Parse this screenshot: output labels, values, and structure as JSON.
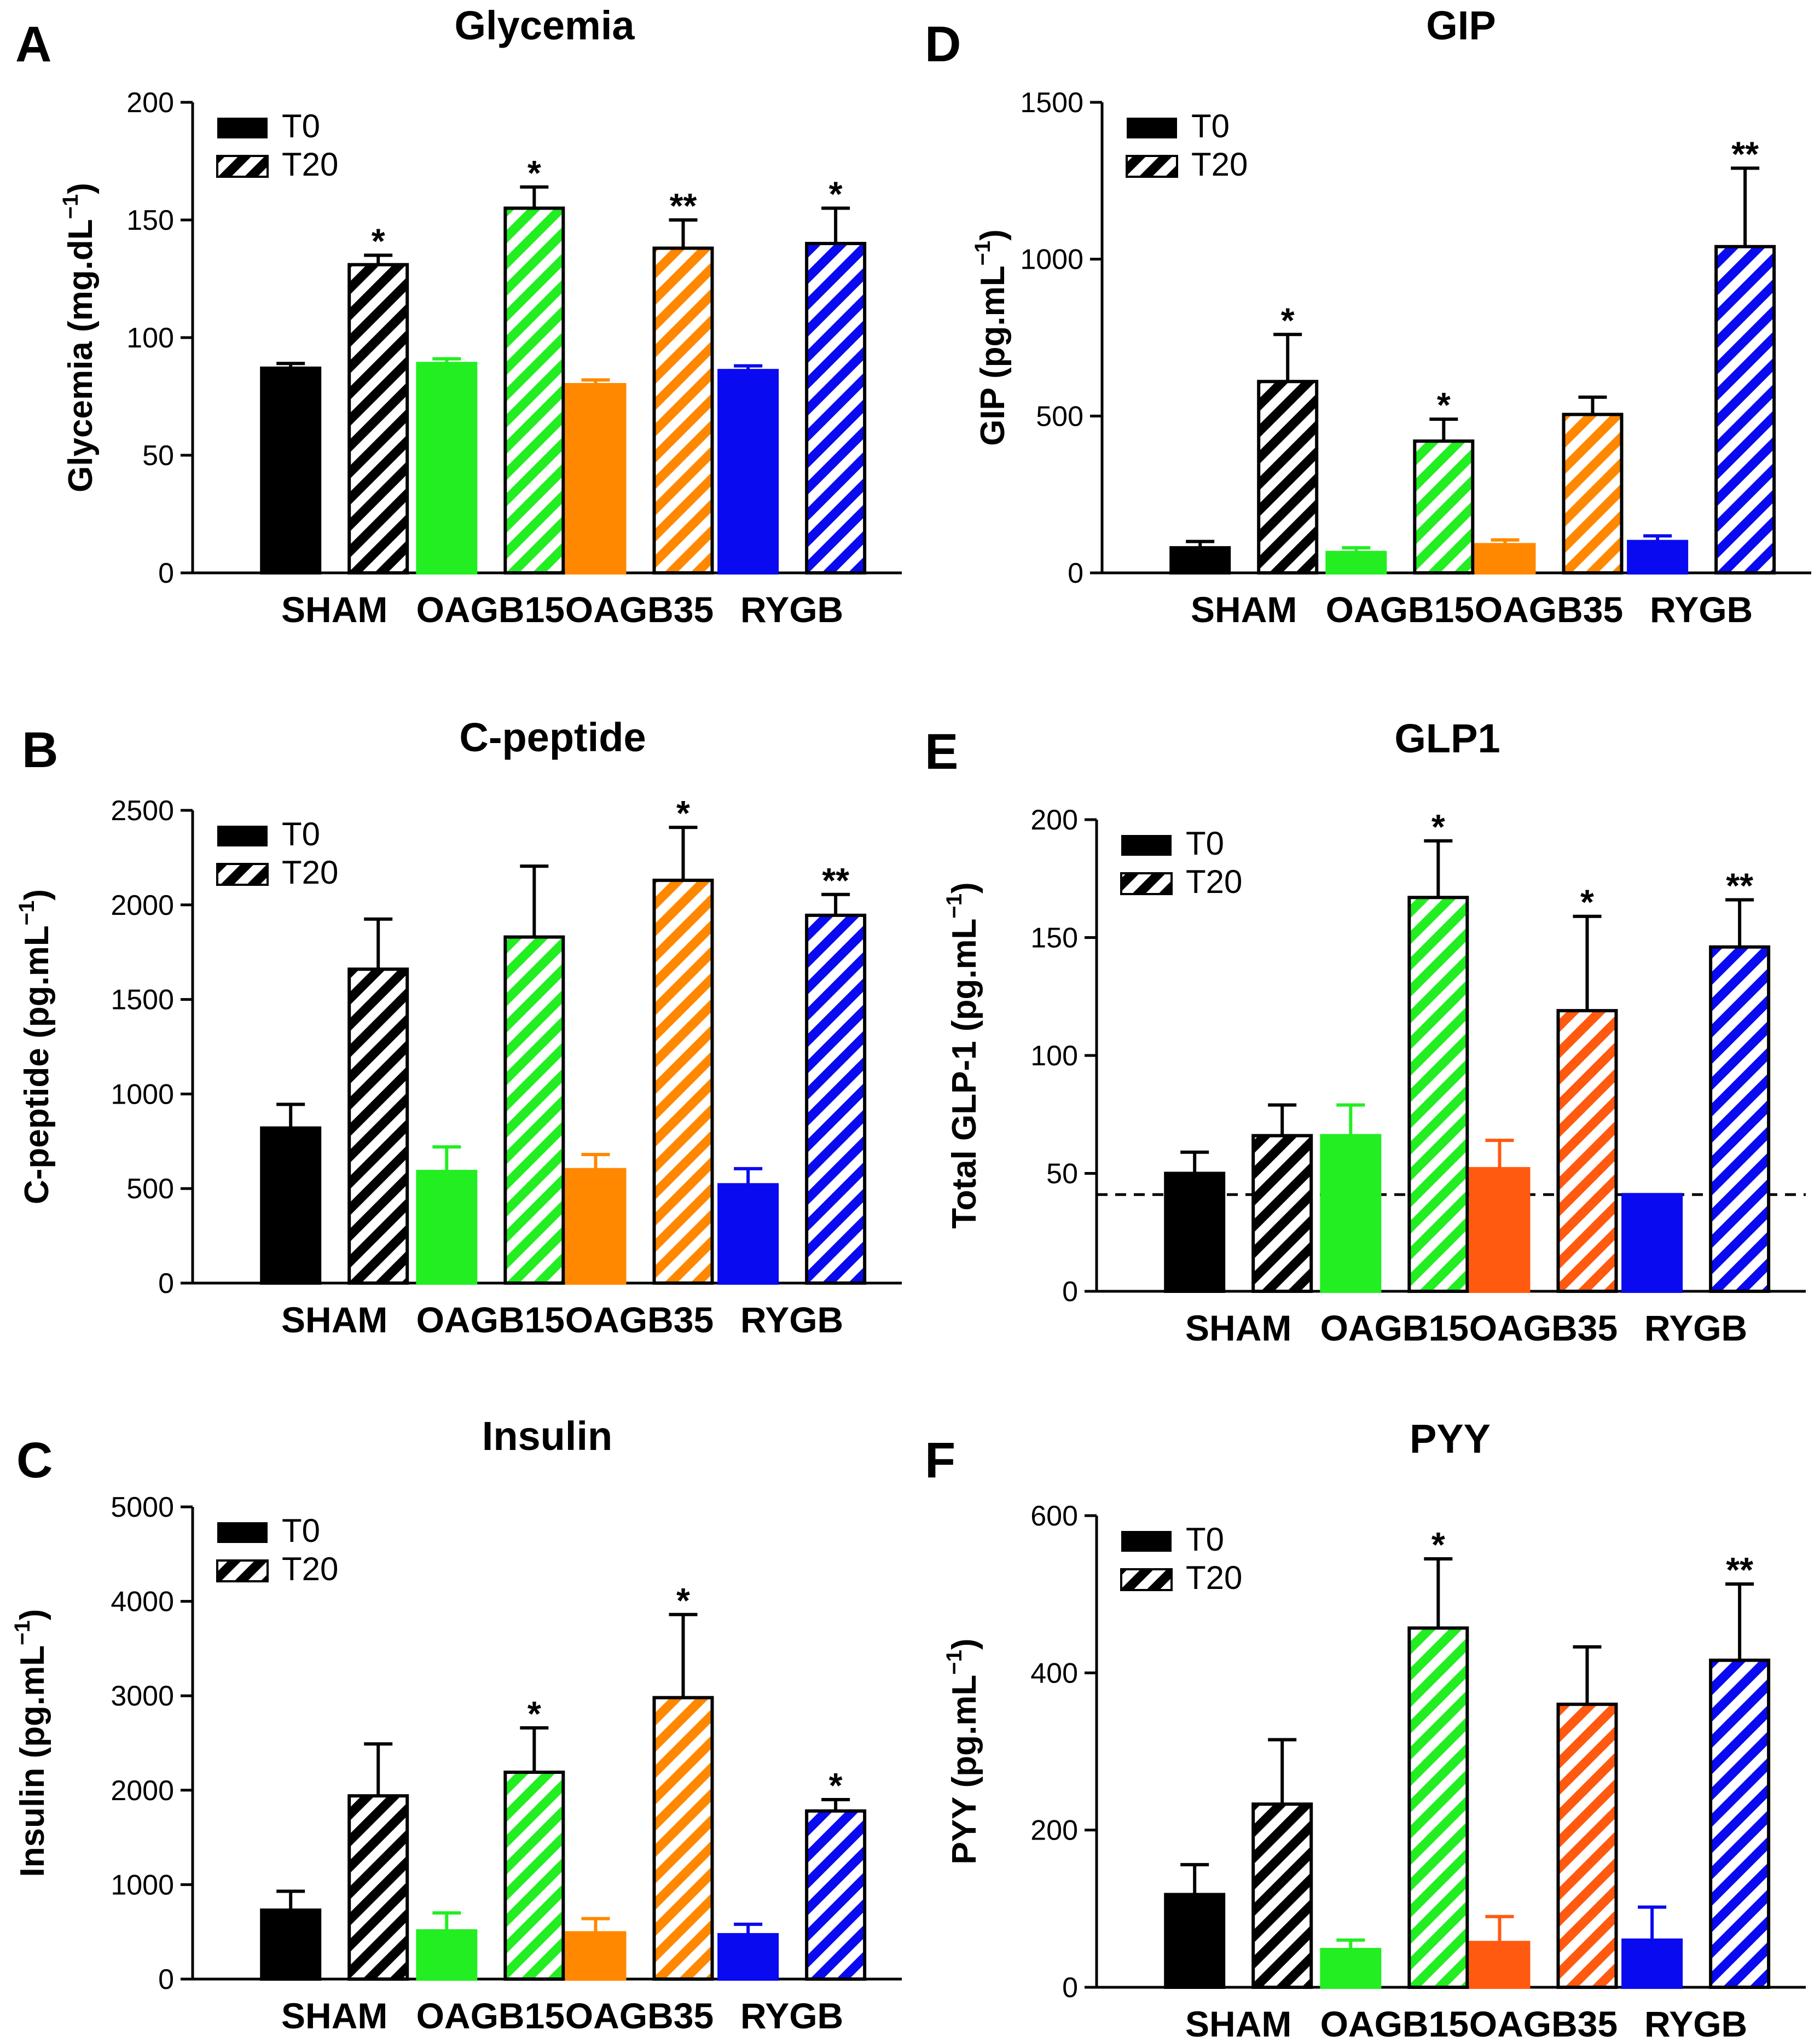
{
  "colors": {
    "SHAM": "#000000",
    "OAGB15": "#22ee22",
    "OAGB35": "#ff8800",
    "RYGB": "#0a0af0"
  },
  "chart_data": [
    {
      "panel": "A",
      "type": "bar",
      "title": "Glycemia",
      "ylabel": "Glycemia (mg.dL",
      "ylabel_sup": "−1",
      "ylabel_end": ")",
      "ylim": [
        0,
        200
      ],
      "yticks": [
        "0",
        "50",
        "100",
        "150",
        "200"
      ],
      "categories": [
        "SHAM",
        "OAGB15",
        "OAGB35",
        "RYGB"
      ],
      "legend": [
        "T0",
        "T20"
      ],
      "legend_position": "top-left",
      "series": [
        {
          "name": "T0",
          "values": [
            87,
            89,
            80,
            86
          ],
          "errors": [
            2,
            2,
            2,
            2
          ],
          "sig": [
            "",
            "",
            "",
            ""
          ]
        },
        {
          "name": "T20",
          "values": [
            131,
            155,
            138,
            140
          ],
          "errors": [
            4,
            9,
            12,
            15
          ],
          "sig": [
            "*",
            "*",
            "**",
            "*"
          ]
        }
      ],
      "oagb35_color": "#ff8800"
    },
    {
      "panel": "B",
      "type": "bar",
      "title": "C-peptide",
      "ylabel": "C-peptide (pg.mL",
      "ylabel_sup": "−1",
      "ylabel_end": ")",
      "ylim": [
        0,
        2500
      ],
      "yticks": [
        "0",
        "500",
        "1000",
        "1500",
        "2000",
        "2500"
      ],
      "categories": [
        "SHAM",
        "OAGB15",
        "OAGB35",
        "RYGB"
      ],
      "legend": [
        "T0",
        "T20"
      ],
      "legend_position": "top-left",
      "series": [
        {
          "name": "T0",
          "values": [
            820,
            590,
            600,
            520
          ],
          "errors": [
            125,
            130,
            80,
            85
          ],
          "sig": [
            "",
            "",
            "",
            ""
          ]
        },
        {
          "name": "T20",
          "values": [
            1660,
            1830,
            2130,
            1945
          ],
          "errors": [
            265,
            375,
            280,
            110
          ],
          "sig": [
            "",
            "",
            "*",
            "**"
          ]
        }
      ],
      "oagb35_color": "#ff8800"
    },
    {
      "panel": "C",
      "type": "bar",
      "title": "Insulin",
      "ylabel": "Insulin (pg.mL",
      "ylabel_sup": "−1",
      "ylabel_end": ")",
      "ylim": [
        0,
        5000
      ],
      "yticks": [
        "0",
        "1000",
        "2000",
        "3000",
        "4000",
        "5000"
      ],
      "categories": [
        "SHAM",
        "OAGB15",
        "OAGB35",
        "RYGB"
      ],
      "legend": [
        "T0",
        "T20"
      ],
      "legend_position": "top-left",
      "series": [
        {
          "name": "T0",
          "values": [
            730,
            510,
            490,
            470
          ],
          "errors": [
            200,
            190,
            150,
            110
          ],
          "sig": [
            "",
            "",
            "",
            ""
          ]
        },
        {
          "name": "T20",
          "values": [
            1940,
            2190,
            2980,
            1780
          ],
          "errors": [
            550,
            470,
            880,
            120
          ],
          "sig": [
            "",
            "*",
            "*",
            "*"
          ]
        }
      ],
      "oagb35_color": "#ff8800"
    },
    {
      "panel": "D",
      "type": "bar",
      "title": "GIP",
      "ylabel": "GIP (pg.mL",
      "ylabel_sup": "−1",
      "ylabel_end": ")",
      "ylim": [
        0,
        1500
      ],
      "yticks": [
        "0",
        "500",
        "1000",
        "1500"
      ],
      "categories": [
        "SHAM",
        "OAGB15",
        "OAGB35",
        "RYGB"
      ],
      "legend": [
        "T0",
        "T20"
      ],
      "legend_position": "top-left",
      "series": [
        {
          "name": "T0",
          "values": [
            80,
            65,
            90,
            100
          ],
          "errors": [
            20,
            15,
            15,
            18
          ],
          "sig": [
            "",
            "",
            "",
            ""
          ]
        },
        {
          "name": "T20",
          "values": [
            610,
            420,
            505,
            1040
          ],
          "errors": [
            150,
            70,
            55,
            250
          ],
          "sig": [
            "*",
            "*",
            "",
            "**"
          ]
        }
      ],
      "oagb35_color": "#ff8800"
    },
    {
      "panel": "E",
      "type": "bar",
      "title": "GLP1",
      "ylabel": "Total GLP-1 (pg.mL",
      "ylabel_sup": "−1",
      "ylabel_end": ")",
      "ylim": [
        0,
        200
      ],
      "yticks": [
        "0",
        "50",
        "100",
        "150",
        "200"
      ],
      "categories": [
        "SHAM",
        "OAGB15",
        "OAGB35",
        "RYGB"
      ],
      "legend": [
        "T0",
        "T20"
      ],
      "legend_position": "top-left",
      "reference_line": 41,
      "series": [
        {
          "name": "T0",
          "values": [
            50,
            66,
            52,
            41
          ],
          "errors": [
            9,
            13,
            12,
            0
          ],
          "sig": [
            "",
            "",
            "",
            ""
          ]
        },
        {
          "name": "T20",
          "values": [
            66,
            167,
            119,
            146
          ],
          "errors": [
            13,
            24,
            40,
            20
          ],
          "sig": [
            "",
            "*",
            "*",
            "**"
          ]
        }
      ],
      "values_note_order": "SHAM,OAGB15,OAGB35,RYGB",
      "oagb35_color": "#ff5a10"
    },
    {
      "panel": "F",
      "type": "bar",
      "title": "PYY",
      "ylabel": "PYY (pg.mL",
      "ylabel_sup": "−1",
      "ylabel_end": ")",
      "ylim": [
        0,
        600
      ],
      "yticks": [
        "0",
        "200",
        "400",
        "600"
      ],
      "categories": [
        "SHAM",
        "OAGB15",
        "OAGB35",
        "RYGB"
      ],
      "legend": [
        "T0",
        "T20"
      ],
      "legend_position": "top-left",
      "series": [
        {
          "name": "T0",
          "values": [
            118,
            48,
            57,
            60
          ],
          "errors": [
            38,
            12,
            33,
            42
          ],
          "sig": [
            "",
            "",
            "",
            ""
          ]
        },
        {
          "name": "T20",
          "values": [
            233,
            457,
            360,
            416
          ],
          "errors": [
            82,
            88,
            73,
            97
          ],
          "sig": [
            "",
            "*",
            "",
            "**"
          ]
        }
      ],
      "oagb35_color": "#ff5a10"
    }
  ]
}
